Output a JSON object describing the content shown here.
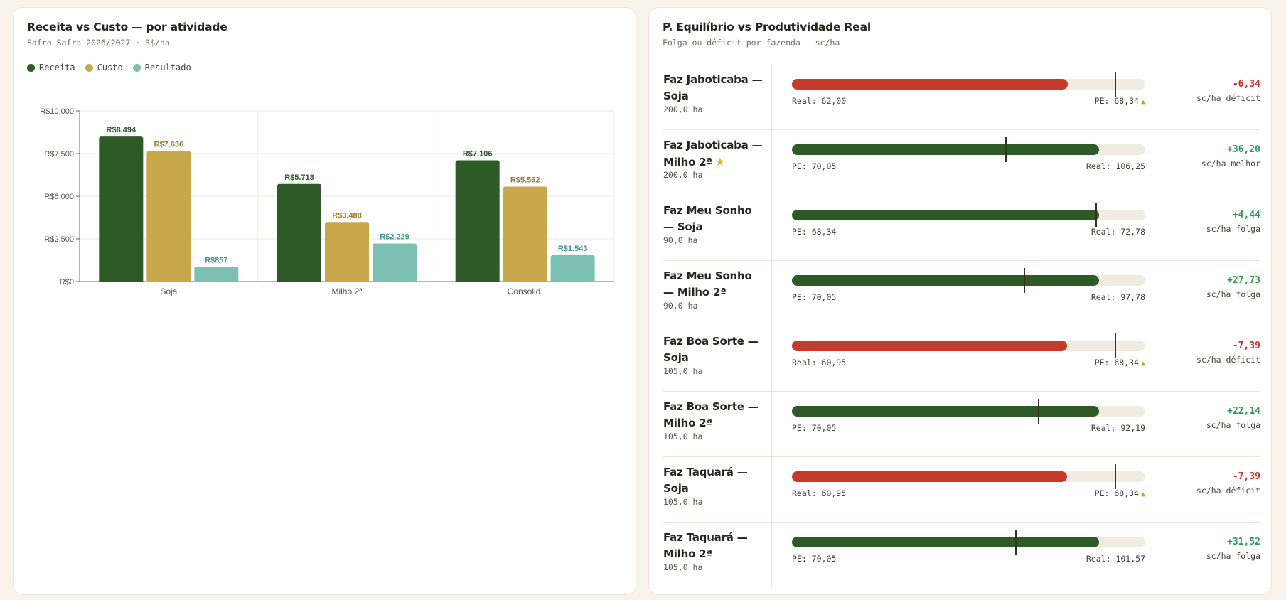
{
  "left": {
    "title": "Receita vs Custo — por atividade",
    "subtitle": "Safra Safra 2026/2027 · R$/ha",
    "legend": [
      {
        "label": "Receita",
        "color": "#2d5a27"
      },
      {
        "label": "Custo",
        "color": "#c9a84c"
      },
      {
        "label": "Resultado",
        "color": "#7cc0b4"
      }
    ]
  },
  "chart_data": {
    "type": "bar",
    "categories": [
      "Soja",
      "Milho 2ª",
      "Consolid."
    ],
    "series": [
      {
        "name": "Receita",
        "color": "#2d5a27",
        "label_color": "#2d5a27",
        "values": [
          8494,
          5718,
          7106
        ],
        "labels": [
          "R$8.494",
          "R$5.718",
          "R$7.106"
        ]
      },
      {
        "name": "Custo",
        "color": "#c9a84c",
        "label_color": "#9a7a22",
        "values": [
          7636,
          3488,
          5562
        ],
        "labels": [
          "R$7.636",
          "R$3.488",
          "R$5.562"
        ]
      },
      {
        "name": "Resultado",
        "color": "#7cc0b4",
        "label_color": "#3f9488",
        "values": [
          857,
          2229,
          1543
        ],
        "labels": [
          "R$857",
          "R$2.229",
          "R$1.543"
        ]
      }
    ],
    "ylim": [
      0,
      10000
    ],
    "yticks": [
      0,
      2500,
      5000,
      7500,
      10000
    ],
    "ytick_labels": [
      "R$0",
      "R$2.500",
      "R$5.000",
      "R$7.500",
      "R$10.000"
    ],
    "grid": true
  },
  "right": {
    "title": "P. Equilíbrio vs Produtividade Real",
    "subtitle": "Folga ou déficit por fazenda — sc/ha",
    "rows": [
      {
        "name": "Faz Jaboticaba — Soja",
        "star": false,
        "area": "200,0 ha",
        "fill_pct": 78,
        "marker_pct": 91.5,
        "status": "deficit",
        "left_label": "Real: 62,00",
        "right_label": "PE: 68,34",
        "warn": true,
        "delta": "-6,34",
        "delta_sub": "sc/ha déficit"
      },
      {
        "name": "Faz Jaboticaba — Milho 2ª",
        "star": true,
        "area": "200,0 ha",
        "fill_pct": 87,
        "marker_pct": 60.5,
        "status": "ok",
        "left_label": "PE: 70,05",
        "right_label": "Real: 106,25",
        "warn": false,
        "delta": "+36,20",
        "delta_sub": "sc/ha melhor"
      },
      {
        "name": "Faz Meu Sonho — Soja",
        "star": false,
        "area": "90,0 ha",
        "fill_pct": 87,
        "marker_pct": 86.2,
        "status": "ok",
        "left_label": "PE: 68,34",
        "right_label": "Real: 72,78",
        "warn": false,
        "delta": "+4,44",
        "delta_sub": "sc/ha folga"
      },
      {
        "name": "Faz Meu Sonho — Milho 2ª",
        "star": false,
        "area": "90,0 ha",
        "fill_pct": 87,
        "marker_pct": 65.8,
        "status": "ok",
        "left_label": "PE: 70,05",
        "right_label": "Real: 97,78",
        "warn": false,
        "delta": "+27,73",
        "delta_sub": "sc/ha folga"
      },
      {
        "name": "Faz Boa Sorte — Soja",
        "star": false,
        "area": "105,0 ha",
        "fill_pct": 77.8,
        "marker_pct": 91.5,
        "status": "deficit",
        "left_label": "Real: 60,95",
        "right_label": "PE: 68,34",
        "warn": true,
        "delta": "-7,39",
        "delta_sub": "sc/ha déficit"
      },
      {
        "name": "Faz Boa Sorte — Milho 2ª",
        "star": false,
        "area": "105,0 ha",
        "fill_pct": 87,
        "marker_pct": 69.8,
        "status": "ok",
        "left_label": "PE: 70,05",
        "right_label": "Real: 92,19",
        "warn": false,
        "delta": "+22,14",
        "delta_sub": "sc/ha folga"
      },
      {
        "name": "Faz Taquará — Soja",
        "star": false,
        "area": "105,0 ha",
        "fill_pct": 77.8,
        "marker_pct": 91.5,
        "status": "deficit",
        "left_label": "Real: 60,95",
        "right_label": "PE: 68,34",
        "warn": true,
        "delta": "-7,39",
        "delta_sub": "sc/ha déficit"
      },
      {
        "name": "Faz Taquará — Milho 2ª",
        "star": false,
        "area": "105,0 ha",
        "fill_pct": 87,
        "marker_pct": 63.3,
        "status": "ok",
        "left_label": "PE: 70,05",
        "right_label": "Real: 101,57",
        "warn": false,
        "delta": "+31,52",
        "delta_sub": "sc/ha folga"
      }
    ]
  },
  "colors": {
    "ok_bar": "#2d5a27",
    "deficit_bar": "#c43b2c",
    "ok_text": "#2e9e4e",
    "deficit_text": "#c8302a",
    "warn": "#d69a1a"
  }
}
